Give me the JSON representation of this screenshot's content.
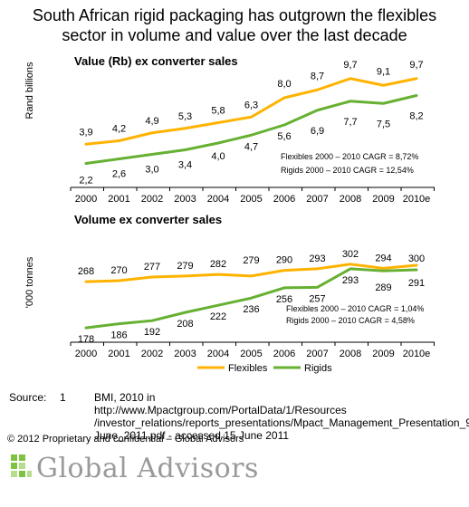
{
  "title_lines": [
    "South African rigid packaging has outgrown the flexibles",
    "sector in volume and value over the last decade"
  ],
  "colors": {
    "flexibles": "#FFB300",
    "rigids": "#66B032"
  },
  "chart_data": [
    {
      "type": "line",
      "title": "Value (Rb) ex converter sales",
      "ylabel": "Rand billions",
      "xlabel": "",
      "categories": [
        "2000",
        "2001",
        "2002",
        "2003",
        "2004",
        "2005",
        "2006",
        "2007",
        "2008",
        "2009",
        "2010e"
      ],
      "ylim": [
        0,
        11
      ],
      "series": [
        {
          "name": "Flexibles",
          "values": [
            3.9,
            4.2,
            4.9,
            5.3,
            5.8,
            6.3,
            8.0,
            8.7,
            9.7,
            9.1,
            9.7
          ],
          "labels": [
            "3,9",
            "4,2",
            "4,9",
            "5,3",
            "5,8",
            "6,3",
            "8,0",
            "8,7",
            "9,7",
            "9,1",
            "9,7"
          ]
        },
        {
          "name": "Rigids",
          "values": [
            2.2,
            2.6,
            3.0,
            3.4,
            4.0,
            4.7,
            5.6,
            6.9,
            7.7,
            7.5,
            8.2
          ],
          "labels": [
            "2,2",
            "2,6",
            "3,0",
            "3,4",
            "4,0",
            "4,7",
            "5,6",
            "6,9",
            "7,7",
            "7,5",
            "8,2"
          ]
        }
      ],
      "annotations": [
        "Flexibles 2000 – 2010 CAGR = 8,72%",
        "Rigids 2000 – 2010 CAGR = 12,54%"
      ],
      "grid": false
    },
    {
      "type": "line",
      "title": "Volume ex converter sales",
      "ylabel": "'000 tonnes",
      "xlabel": "",
      "categories": [
        "2000",
        "2001",
        "2002",
        "2003",
        "2004",
        "2005",
        "2006",
        "2007",
        "2008",
        "2009",
        "2010e"
      ],
      "ylim": [
        0,
        400
      ],
      "series": [
        {
          "name": "Flexibles",
          "values": [
            268,
            270,
            277,
            279,
            282,
            279,
            290,
            293,
            302,
            294,
            300
          ],
          "labels": [
            "268",
            "270",
            "277",
            "279",
            "282",
            "279",
            "290",
            "293",
            "302",
            "294",
            "300"
          ]
        },
        {
          "name": "Rigids",
          "values": [
            178,
            186,
            192,
            208,
            222,
            236,
            256,
            257,
            293,
            289,
            291
          ],
          "labels": [
            "178",
            "186",
            "192",
            "208",
            "222",
            "236",
            "256",
            "257",
            "293",
            "289",
            "291"
          ]
        }
      ],
      "annotations": [
        "Flexibles 2000 – 2010 CAGR = 1,04%",
        "Rigids 2000 – 2010  CAGR = 4,58%"
      ],
      "legend": [
        "Flexibles",
        "Rigids"
      ],
      "legend_position": "bottom",
      "grid": false
    }
  ],
  "source": {
    "label": "Source:",
    "number": "1",
    "text": "BMI, 2010 in http://www.Mpactgroup.com/PortalData/1/Resources /investor_relations/reports_presentations/Mpact_Management_Presentation_9_ June_2011.pdf - accessed 15 June 2011"
  },
  "copyright": "© 2012 Proprietary and confidential – Global Advisors",
  "logo_text": "Global Advisors"
}
